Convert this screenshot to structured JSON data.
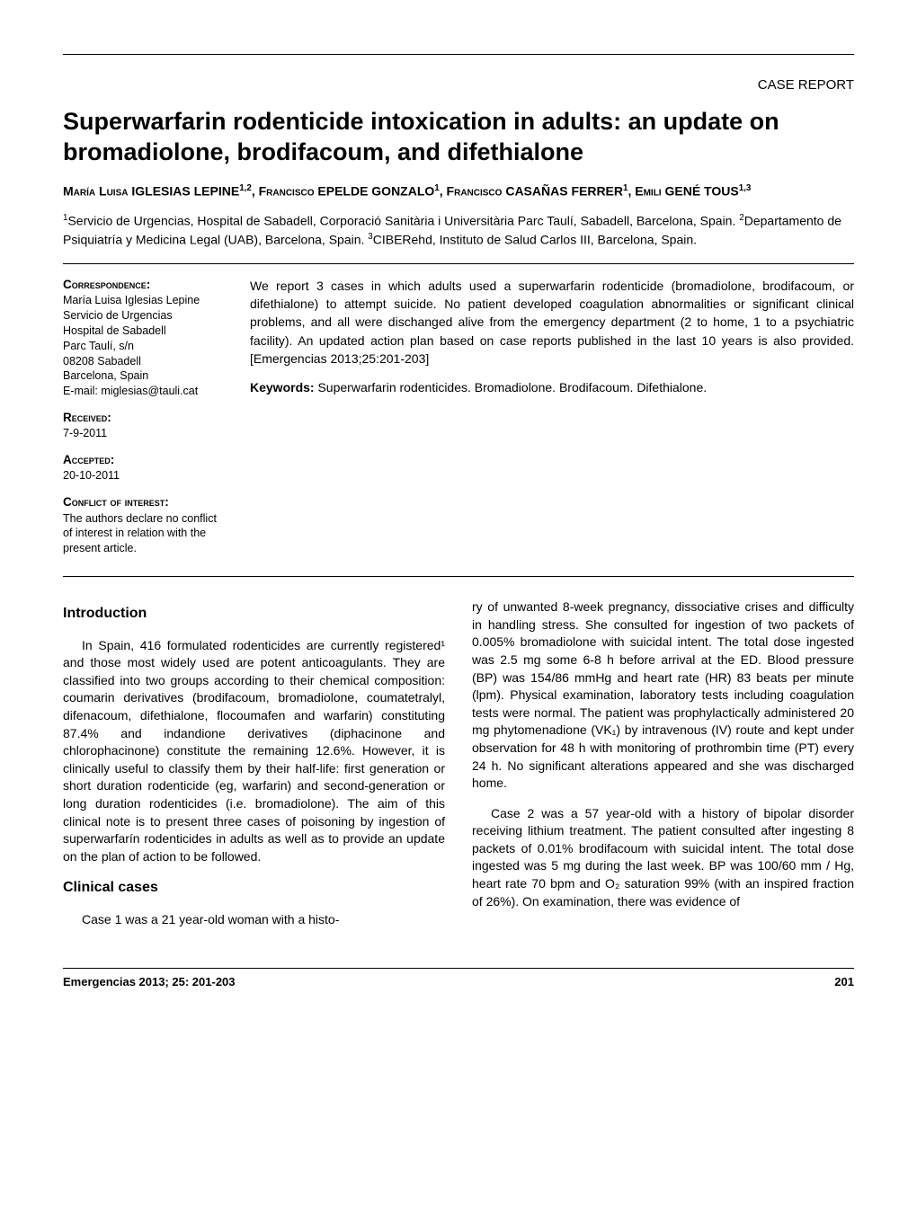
{
  "header": {
    "case_label": "CASE REPORT"
  },
  "title": "Superwarfarin rodenticide intoxication in adults: an update on bromadiolone, brodifacoum, and difethialone",
  "authors_html": "M<span class='smallcaps'>aría</span> L<span class='smallcaps'>uisa</span> IGLESIAS LEPINE<sup>1,2</sup>, F<span class='smallcaps'>rancisco</span> EPELDE GONZALO<sup>1</sup>, F<span class='smallcaps'>rancisco</span> CASAÑAS FERRER<sup>1</sup>, E<span class='smallcaps'>mili</span> GENÉ TOUS<sup>1,3</sup>",
  "affiliations_html": "<sup>1</sup>Servicio de Urgencias, Hospital de Sabadell, Corporació Sanitària i Universitària Parc Taulí, Sabadell, Barcelona, Spain. <sup>2</sup>Departamento de Psiquiatría y Medicina Legal (UAB), Barcelona, Spain. <sup>3</sup>CIBERehd, Instituto de Salud Carlos III, Barcelona, Spain.",
  "meta": {
    "correspondence_head": "Correspondence:",
    "correspondence_body": "María Luisa Iglesias Lepine\nServicio de Urgencias\nHospital de Sabadell\nParc Taulí, s/n\n08208 Sabadell\nBarcelona, Spain\nE-mail: miglesias@tauli.cat",
    "received_head": "Received:",
    "received_val": "7-9-2011",
    "accepted_head": "Accepted:",
    "accepted_val": "20-10-2011",
    "conflict_head": "Conflict of interest:",
    "conflict_body": "The authors declare no conflict of interest in relation with the present article."
  },
  "abstract": "We report 3 cases in which adults used a superwarfarin rodenticide (bromadiolone, brodifacoum, or difethialone) to attempt suicide. No patient developed coagulation abnormalities or significant clinical problems, and all were dischanged alive from the emergency department (2 to home, 1 to a psychiatric facility). An updated action plan based on case reports published in the last 10 years is also provided. [Emergencias 2013;25:201-203]",
  "keywords_label": "Keywords:",
  "keywords": "Superwarfarin rodenticides. Bromadiolone. Brodifacoum. Difethialone.",
  "sections": {
    "intro_head": "Introduction",
    "intro_p1": "In Spain, 416 formulated rodenticides are currently registered¹ and those most widely used are potent anticoagulants. They are classified into two groups according to their chemical composition: coumarin derivatives (brodifacoum, bromadiolone, coumatetralyl, difenacoum, difethialone, flocoumafen and warfarin) constituting 87.4% and indandione derivatives (diphacinone and chlorophacinone) constitute the remaining 12.6%. However, it is clinically useful to classify them by their half-life: first generation or short duration rodenticide (eg, warfarin) and second-generation or long duration rodenticides (i.e. bromadiolone). The aim of this clinical note is to present three cases of poisoning by ingestion of superwarfarín rodenticides in adults as well as to provide an update on the plan of action to be followed.",
    "cases_head": "Clinical cases",
    "cases_p1": "Case 1 was a 21 year-old woman with a histo-",
    "col2_p1": "ry of unwanted 8-week pregnancy, dissociative crises and difficulty in handling stress. She consulted for ingestion of two packets of 0.005% bromadiolone with suicidal intent. The total dose ingested was 2.5 mg some 6-8 h before arrival at the ED. Blood pressure (BP) was 154/86 mmHg and heart rate (HR) 83 beats per minute (lpm). Physical examination, laboratory tests including coagulation tests were normal. The patient was prophylactically administered 20 mg phytomenadione (VK₁) by intravenous (IV) route and kept under observation for 48 h with monitoring of prothrombin time (PT) every 24 h. No significant alterations appeared and she was discharged home.",
    "col2_p2": "Case 2 was a 57 year-old with a history of bipolar disorder receiving lithium treatment. The patient consulted after ingesting 8 packets of 0.01% brodifacoum with suicidal intent. The total dose ingested was 5 mg during the last week. BP was 100/60 mm / Hg, heart rate 70 bpm and O₂ saturation 99% (with an inspired fraction of 26%). On examination, there was evidence of"
  },
  "footer": {
    "journal": "Emergencias 2013; 25: 201-203",
    "page": "201"
  },
  "colors": {
    "text": "#000000",
    "bg": "#ffffff",
    "rule": "#000000"
  }
}
